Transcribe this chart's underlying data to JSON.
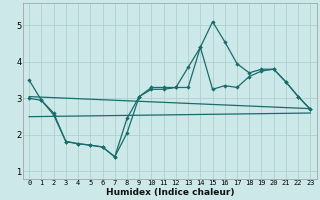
{
  "xlabel": "Humidex (Indice chaleur)",
  "bg_color": "#cce8e8",
  "grid_color": "#aacccc",
  "line_color": "#1a6b6b",
  "xlim": [
    -0.5,
    23.5
  ],
  "ylim": [
    0.8,
    5.6
  ],
  "yticks": [
    1,
    2,
    3,
    4,
    5
  ],
  "xticks": [
    0,
    1,
    2,
    3,
    4,
    5,
    6,
    7,
    8,
    9,
    10,
    11,
    12,
    13,
    14,
    15,
    16,
    17,
    18,
    19,
    20,
    21,
    22,
    23
  ],
  "xtick_labels": [
    "0",
    "1",
    "2",
    "3",
    "4",
    "5",
    "6",
    "7",
    "8",
    "9",
    "10",
    "11",
    "12",
    "13",
    "14",
    "15",
    "16",
    "17",
    "18",
    "19",
    "20",
    "21",
    "22",
    "23"
  ],
  "line1_x": [
    0,
    1,
    2,
    3,
    4,
    5,
    6,
    7,
    8,
    9,
    10,
    11,
    12,
    13,
    14,
    15,
    16,
    17,
    18,
    19,
    20,
    21,
    22,
    23
  ],
  "line1_y": [
    3.5,
    2.95,
    2.6,
    1.82,
    1.76,
    1.72,
    1.67,
    1.4,
    2.45,
    3.05,
    3.3,
    3.3,
    3.3,
    3.85,
    4.4,
    5.1,
    4.55,
    3.95,
    3.7,
    3.8,
    3.8,
    3.45,
    3.05,
    2.7
  ],
  "line2_x": [
    0,
    1,
    2,
    3,
    4,
    5,
    6,
    7,
    8,
    9,
    10,
    11,
    12,
    13,
    14,
    15,
    16,
    17,
    18,
    19,
    20,
    21,
    22,
    23
  ],
  "line2_y": [
    3.0,
    2.95,
    2.55,
    1.82,
    1.76,
    1.72,
    1.67,
    1.4,
    2.05,
    3.05,
    3.25,
    3.25,
    3.3,
    3.3,
    4.4,
    3.25,
    3.35,
    3.3,
    3.6,
    3.75,
    3.8,
    3.45,
    3.05,
    2.7
  ],
  "line3_x": [
    0,
    23
  ],
  "line3_y": [
    3.05,
    2.72
  ],
  "line4_x": [
    0,
    23
  ],
  "line4_y": [
    2.5,
    2.6
  ]
}
